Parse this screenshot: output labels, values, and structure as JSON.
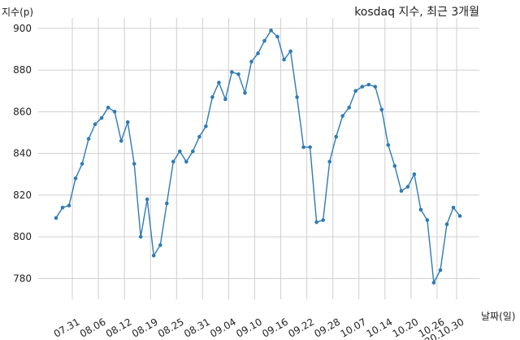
{
  "chart_data": {
    "type": "line",
    "title": "kosdaq 지수, 최근 3개월",
    "ylabel": "지수(p)",
    "xlabel": "날짜(일)",
    "ylim": [
      770,
      905
    ],
    "yticks": [
      780,
      800,
      820,
      840,
      860,
      880,
      900
    ],
    "grid": true,
    "line_color": "#2e7bb4",
    "xticks": [
      {
        "index": 2.5,
        "label": "07.31"
      },
      {
        "index": 6.5,
        "label": "08.06"
      },
      {
        "index": 10.5,
        "label": "08.12"
      },
      {
        "index": 14.5,
        "label": "08.19"
      },
      {
        "index": 18.5,
        "label": "08.25"
      },
      {
        "index": 22.5,
        "label": "08.31"
      },
      {
        "index": 26.5,
        "label": "09.04"
      },
      {
        "index": 30.5,
        "label": "09.10"
      },
      {
        "index": 34.5,
        "label": "09.16"
      },
      {
        "index": 38.5,
        "label": "09.22"
      },
      {
        "index": 42.5,
        "label": "09.28"
      },
      {
        "index": 46.5,
        "label": "10.07"
      },
      {
        "index": 50.5,
        "label": "10.14"
      },
      {
        "index": 54.5,
        "label": "10.20"
      },
      {
        "index": 58.5,
        "label": "10.26"
      },
      {
        "index": 61.5,
        "label": "20.10.30"
      }
    ],
    "values": [
      809,
      814,
      815,
      828,
      835,
      847,
      854,
      857,
      862,
      860,
      846,
      855,
      835,
      800,
      818,
      791,
      796,
      816,
      836,
      841,
      836,
      841,
      848,
      853,
      867,
      874,
      866,
      879,
      878,
      869,
      884,
      888,
      894,
      899,
      896,
      885,
      889,
      867,
      843,
      843,
      807,
      808,
      836,
      848,
      858,
      862,
      870,
      872,
      873,
      872,
      861,
      844,
      834,
      822,
      824,
      830,
      813,
      808,
      778,
      784,
      806,
      814,
      810
    ]
  }
}
